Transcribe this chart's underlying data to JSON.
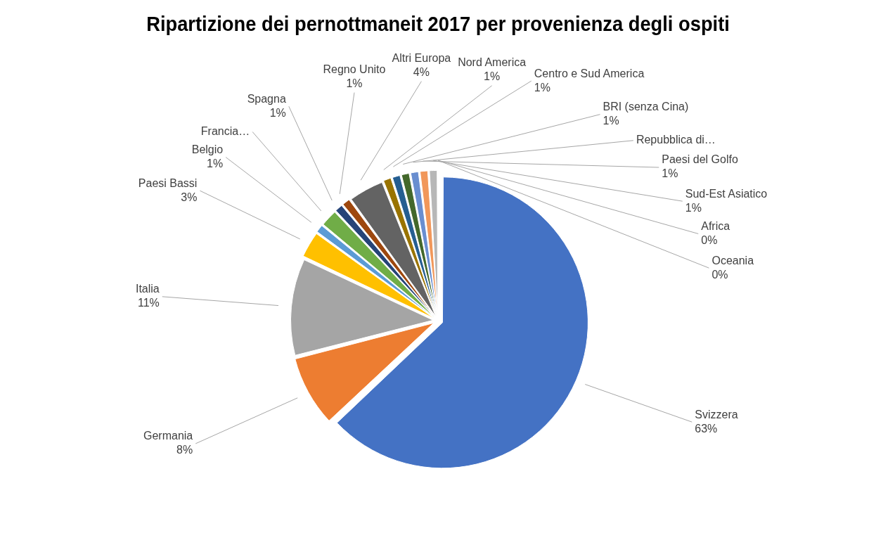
{
  "chart_data": {
    "type": "pie",
    "title": "Ripartizione dei pernottmaneit 2017 per provenienza degli ospiti",
    "categories": [
      "Svizzera",
      "Germania",
      "Italia",
      "Paesi Bassi",
      "Belgio",
      "Francia…",
      "Spagna",
      "Regno Unito",
      "Altri Europa",
      "Nord America",
      "Centro e Sud America",
      "BRI (senza Cina)",
      "Repubblica di…",
      "Paesi del Golfo",
      "Sud-Est Asiatico",
      "Africa",
      "Oceania"
    ],
    "values": [
      63,
      8,
      11,
      3,
      1,
      2,
      1,
      1,
      4,
      1,
      1,
      1,
      1,
      1,
      1,
      0,
      0
    ],
    "value_labels": [
      "63%",
      "8%",
      "11%",
      "3%",
      "1%",
      null,
      "1%",
      "1%",
      "4%",
      "1%",
      "1%",
      "1%",
      null,
      "1%",
      "1%",
      "0%",
      "0%"
    ],
    "colors": [
      "#4472c4",
      "#ed7d31",
      "#a5a5a5",
      "#ffc000",
      "#5b9bd5",
      "#70ad47",
      "#264478",
      "#9e480e",
      "#636363",
      "#997300",
      "#255e91",
      "#43682b",
      "#698ed0",
      "#f1975a",
      "#b7b7b7",
      "#ffcd33",
      "#7cafdd"
    ]
  }
}
